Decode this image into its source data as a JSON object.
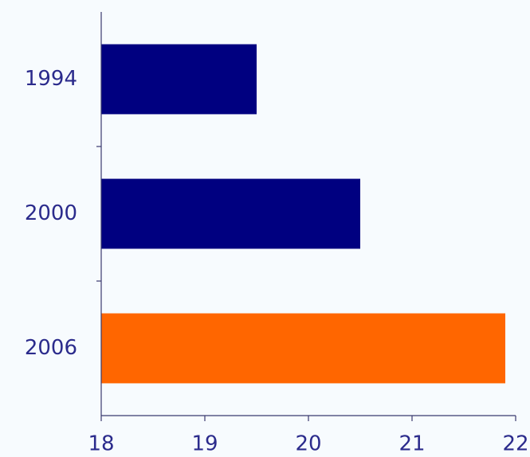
{
  "chart_data": {
    "type": "barh",
    "categories": [
      "1994",
      "2000",
      "2006"
    ],
    "values": [
      19.5,
      20.5,
      21.9
    ],
    "colors": [
      "#000080",
      "#000080",
      "#ff6600"
    ],
    "xlim": [
      18,
      22
    ],
    "xticks": [
      18,
      19,
      20,
      21,
      22
    ]
  }
}
